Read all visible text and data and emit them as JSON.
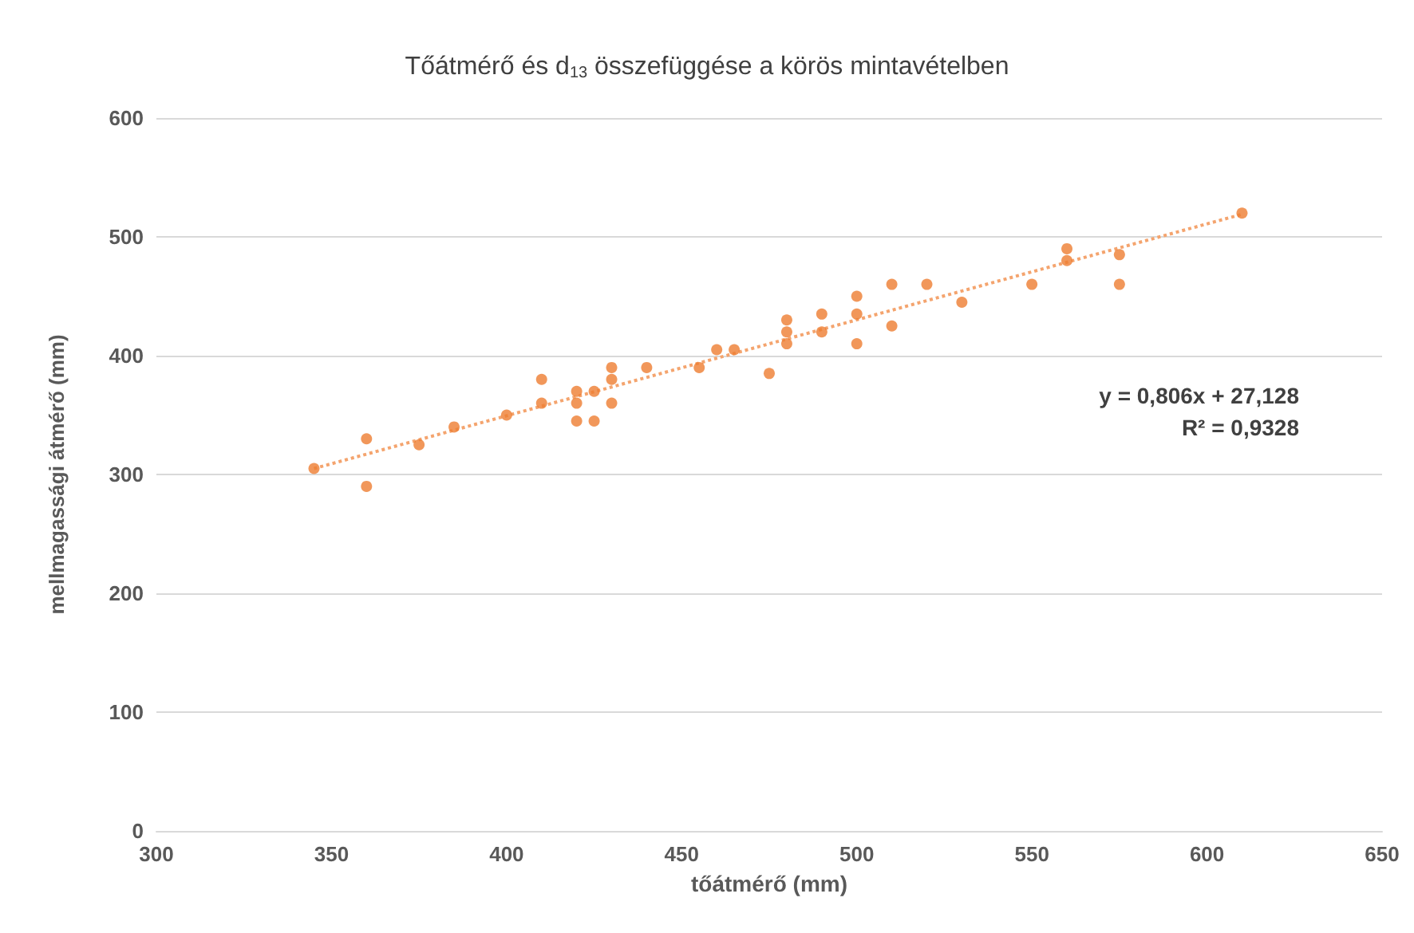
{
  "chart_data": {
    "type": "scatter",
    "title": "Tőátmérő és d$_{13}$ összefüggése a körös mintavételben",
    "xlabel": "tőátmérő (mm)",
    "ylabel": "mellmagassági átmérő (mm)",
    "series": [
      {
        "color": "#ed7d31",
        "marker": "circle",
        "x": [
          345,
          360,
          360,
          375,
          385,
          400,
          410,
          410,
          420,
          420,
          420,
          425,
          425,
          430,
          430,
          430,
          440,
          455,
          460,
          465,
          475,
          480,
          480,
          480,
          490,
          490,
          500,
          500,
          500,
          510,
          510,
          520,
          530,
          550,
          560,
          560,
          575,
          575,
          610
        ],
        "values": [
          305,
          330,
          290,
          325,
          340,
          350,
          380,
          360,
          370,
          360,
          345,
          370,
          345,
          390,
          380,
          360,
          390,
          390,
          405,
          405,
          385,
          430,
          420,
          410,
          435,
          420,
          450,
          435,
          410,
          460,
          425,
          460,
          445,
          460,
          490,
          480,
          485,
          460,
          520
        ]
      },
      {
        "type": "line",
        "color": "#f4a46e",
        "line_style": "dotted",
        "marker": "none",
        "x": [
          345,
          610
        ],
        "values": [
          305,
          519
        ]
      }
    ],
    "annotations": [
      "y = 0,806x + 27,128",
      "R² = 0,9328"
    ],
    "xlim": [
      300,
      650
    ],
    "xticks": [
      300,
      350,
      400,
      450,
      500,
      550,
      600,
      650
    ],
    "ylim": [
      0,
      600
    ],
    "yticks": [
      0,
      100,
      200,
      300,
      400,
      500,
      600
    ],
    "grid": "y"
  }
}
